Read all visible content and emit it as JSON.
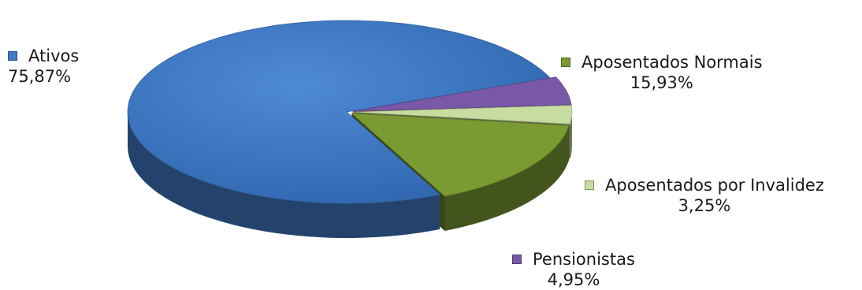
{
  "chart_data": {
    "type": "pie",
    "style": "3d-exploded",
    "title": "",
    "slices": [
      {
        "label": "Ativos",
        "value": 75.87,
        "value_label": "75,87%",
        "color": "#3f79c4"
      },
      {
        "label": "Aposentados Normais",
        "value": 15.93,
        "value_label": "15,93%",
        "color": "#7a9a32"
      },
      {
        "label": "Aposentados por Invalidez",
        "value": 3.25,
        "value_label": "3,25%",
        "color": "#c7dca0"
      },
      {
        "label": "Pensionistas",
        "value": 4.95,
        "value_label": "4,95%",
        "color": "#7a58a8"
      }
    ],
    "legend": "labels-beside-slices"
  }
}
